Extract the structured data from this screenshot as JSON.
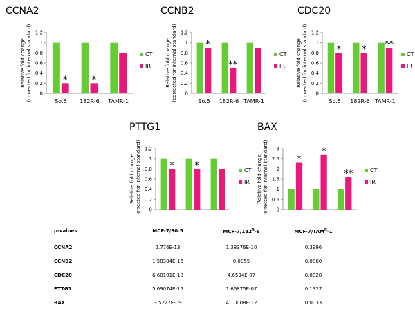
{
  "colors": {
    "ct": "#66cc33",
    "ir": "#e8197a",
    "axis": "#999999",
    "text": "#000000"
  },
  "chart_data": [
    {
      "type": "bar",
      "title": "CCNA2",
      "categories": [
        "So.5",
        "182R-6",
        "TAMR-1"
      ],
      "ylabel": "Relative fold change (corrected for internal standard)",
      "ylim": [
        0,
        1.2
      ],
      "yticks": [
        "0",
        "0.2",
        "0.4",
        "0.6",
        "0.8",
        "1",
        "1.2"
      ],
      "series": [
        {
          "name": "CT",
          "values": [
            1,
            1,
            1
          ]
        },
        {
          "name": "IR",
          "values": [
            0.2,
            0.2,
            0.8
          ]
        }
      ],
      "annotations": [
        "*",
        "*",
        ""
      ],
      "legend": "right"
    },
    {
      "type": "bar",
      "title": "CCNB2",
      "categories": [
        "So.5",
        "182R-6",
        "TAMR-1"
      ],
      "ylabel": "Relative fold change (corrected for internal standard)",
      "ylim": [
        0,
        1.2
      ],
      "yticks": [
        "0",
        "0.2",
        "0.4",
        "0.6",
        "0.8",
        "1",
        "1.2"
      ],
      "series": [
        {
          "name": "CT",
          "values": [
            1,
            1,
            1
          ]
        },
        {
          "name": "IR",
          "values": [
            0.9,
            0.5,
            0.9
          ]
        }
      ],
      "annotations": [
        "*",
        "**",
        ""
      ],
      "legend": "right"
    },
    {
      "type": "bar",
      "title": "CDC20",
      "categories": [
        "So.5",
        "182R-6",
        "TAMR-1"
      ],
      "ylabel": "Relative fold change (corrected for internal standard)",
      "ylim": [
        0,
        1.2
      ],
      "yticks": [
        "0",
        "0.2",
        "0.4",
        "0.6",
        "0.8",
        "1",
        "1.2"
      ],
      "series": [
        {
          "name": "CT",
          "values": [
            1,
            1,
            1
          ]
        },
        {
          "name": "IR",
          "values": [
            0.8,
            0.8,
            0.9
          ]
        }
      ],
      "annotations": [
        "*",
        "*",
        "**"
      ],
      "legend": "right"
    },
    {
      "type": "bar",
      "title": "PTTG1",
      "categories": [
        "So.5",
        "182R-6",
        "TAMR-1"
      ],
      "ylabel": "Relative fold change (corrected for internal standard)",
      "ylim": [
        0,
        1.2
      ],
      "yticks": [
        "0",
        "0.2",
        "0.4",
        "0.6",
        "0.8",
        "1",
        "1.2"
      ],
      "series": [
        {
          "name": "CT",
          "values": [
            1,
            1,
            1
          ]
        },
        {
          "name": "IR",
          "values": [
            0.8,
            0.8,
            0.8
          ]
        }
      ],
      "annotations": [
        "*",
        "*",
        ""
      ],
      "legend": "right"
    },
    {
      "type": "bar",
      "title": "BAX",
      "categories": [
        "So.5",
        "182R-6",
        "TAMR-1"
      ],
      "ylabel": "Relative fold change (corrected for internal standard)",
      "ylim": [
        0,
        3
      ],
      "yticks": [
        "0",
        "0.5",
        "1",
        "1.5",
        "2",
        "2.5",
        "3"
      ],
      "series": [
        {
          "name": "CT",
          "values": [
            1,
            1,
            1
          ]
        },
        {
          "name": "IR",
          "values": [
            2.3,
            2.7,
            1.6
          ]
        }
      ],
      "annotations": [
        "*",
        "*",
        "**"
      ],
      "legend": "right"
    }
  ],
  "pvalues_table": {
    "header": [
      "p-values",
      "MCF-7/S0.5",
      "MCF-7/182",
      "MCF-7/TAM",
      "-6",
      "-1",
      "R"
    ],
    "columns": {
      "c0": "p-values",
      "c1": "MCF-7/S0.5",
      "c2a": "MCF-7/182",
      "c2sup": "R",
      "c2b": "-6",
      "c3a": "MCF-7/TAM",
      "c3sup": "R",
      "c3b": "-1"
    },
    "rows": [
      [
        "CCNA2",
        "2.776E-13",
        "1.38376E-10",
        "0.3996"
      ],
      [
        "CCNB2",
        "1.58304E-16",
        "0.0055",
        "0.0860"
      ],
      [
        "CDC20",
        "6.60101E-18",
        "4.6534E-07",
        "0.0028"
      ],
      [
        "PTTG1",
        "5.69074E-15",
        "1.66875E-07",
        "0.1327"
      ],
      [
        "BAX",
        "3.5227E-09",
        "4.10008E-12",
        "0.0033"
      ]
    ]
  }
}
